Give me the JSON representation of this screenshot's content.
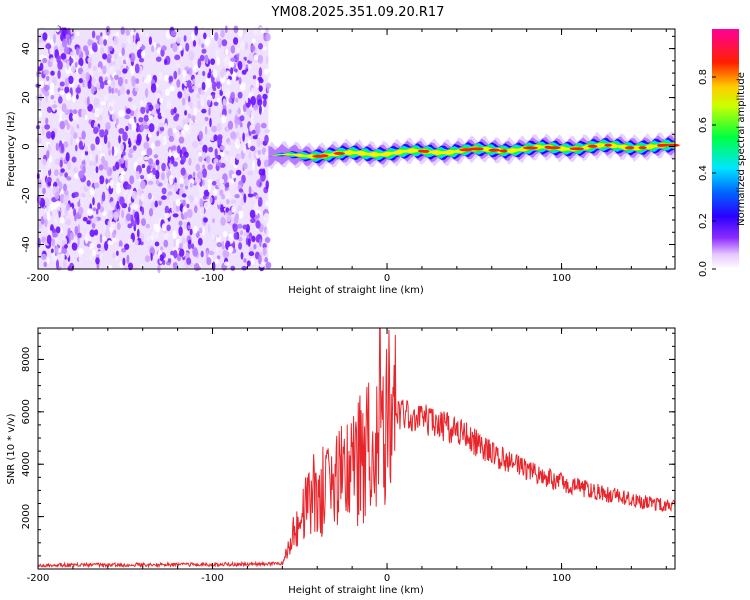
{
  "title": "YM08.2025.351.09.20.R17",
  "chart_data": [
    {
      "type": "heatmap",
      "name": "spectrogram",
      "xlabel": "Height of straight line (km)",
      "ylabel": "Frequency (Hz)",
      "xlim": [
        -200,
        165
      ],
      "ylim": [
        -50,
        48
      ],
      "x_ticks": [
        -200,
        -100,
        0,
        100
      ],
      "y_ticks": [
        -40,
        -20,
        0,
        20,
        40
      ],
      "colorbar": {
        "label": "Normalized spectral amplitude",
        "range": [
          0,
          1
        ],
        "ticks": [
          "0.0",
          "0.2",
          "0.4",
          "0.6",
          "0.8"
        ],
        "colormap": [
          "#ffffff",
          "#b75cff",
          "#5a00ff",
          "#0000ff",
          "#00ffff",
          "#00ff00",
          "#ffff00",
          "#ff0000",
          "#ff00aa"
        ]
      },
      "regions": [
        {
          "description": "broadband noise",
          "x_range": [
            -200,
            -68
          ],
          "freq_range": [
            -50,
            48
          ],
          "amplitude_range": [
            0.05,
            0.2
          ]
        },
        {
          "description": "narrow carrier band",
          "x_range": [
            -68,
            165
          ],
          "freq_center": [
            -4,
            0
          ],
          "half_width_hz": 5,
          "amplitude_peak": 0.95
        }
      ]
    },
    {
      "type": "line",
      "name": "snr",
      "xlabel": "Height of straight line (km)",
      "ylabel": "SNR (10 * v/v)",
      "xlim": [
        -200,
        165
      ],
      "ylim": [
        0,
        9200
      ],
      "x_ticks": [
        -200,
        -100,
        0,
        100
      ],
      "y_ticks": [
        2000,
        4000,
        6000,
        8000
      ],
      "color": "#e8252a",
      "envelope": {
        "x": [
          -200,
          -150,
          -100,
          -60,
          -52,
          -45,
          -35,
          -25,
          -15,
          -5,
          0,
          10,
          20,
          40,
          60,
          80,
          100,
          120,
          140,
          165
        ],
        "y": [
          150,
          160,
          170,
          200,
          1600,
          2800,
          3200,
          3800,
          4600,
          5600,
          6200,
          5800,
          5700,
          5300,
          4400,
          3800,
          3300,
          2950,
          2650,
          2350
        ]
      },
      "peak": {
        "x": -4,
        "y": 9200
      }
    }
  ]
}
